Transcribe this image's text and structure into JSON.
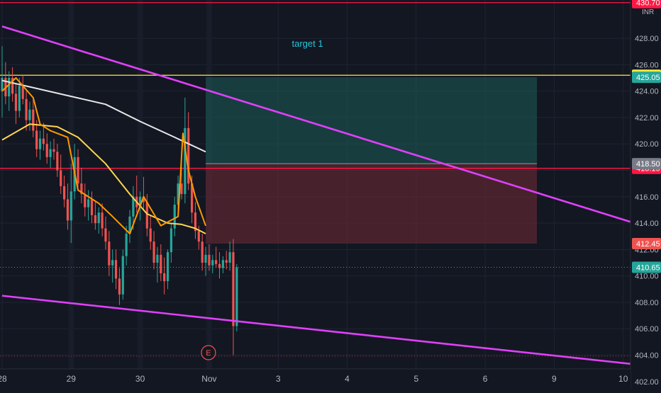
{
  "chart_data": {
    "type": "candlestick",
    "currency": "INR",
    "ylim": [
      401.4,
      430.9
    ],
    "y_ticks": [
      "402.00",
      "404.00",
      "406.00",
      "408.00",
      "410.00",
      "412.00",
      "414.00",
      "416.00",
      "418.00",
      "420.00",
      "422.00",
      "424.00",
      "426.00",
      "428.00"
    ],
    "x_ticks": [
      {
        "label": "28",
        "t": 0
      },
      {
        "label": "29",
        "t": 1
      },
      {
        "label": "30",
        "t": 2
      },
      {
        "label": "Nov",
        "t": 3
      },
      {
        "label": "3",
        "t": 4
      },
      {
        "label": "4",
        "t": 5
      },
      {
        "label": "5",
        "t": 6
      },
      {
        "label": "6",
        "t": 7
      },
      {
        "label": "9",
        "t": 8
      },
      {
        "label": "10",
        "t": 9
      }
    ],
    "horizontal_lines": [
      {
        "price": 430.7,
        "label": "430.70",
        "color": "#ff1744"
      },
      {
        "price": 425.2,
        "label": "425.20",
        "color": "#ffeb3b"
      },
      {
        "price": 418.15,
        "label": "418.15",
        "color": "#ff1744"
      }
    ],
    "price_badges": [
      {
        "price": 425.05,
        "label": "425.05",
        "color": "#26a69a"
      },
      {
        "price": 418.5,
        "label": "418.50",
        "color": "#787b86"
      },
      {
        "price": 412.45,
        "label": "412.45",
        "color": "#ef5350"
      },
      {
        "price": 410.65,
        "label": "410.65",
        "color": "#26a69a"
      }
    ],
    "last_price": 410.65,
    "position": {
      "entry": 418.5,
      "target": 425.05,
      "stop": 412.45,
      "t_start": 2.95,
      "t_end": 7.75,
      "target_label": "target 1"
    },
    "trendlines": [
      {
        "name": "upper",
        "color": "#e040fb",
        "t1": 0,
        "p1": 428.9,
        "t2": 9.35,
        "p2": 413.7
      },
      {
        "name": "lower",
        "color": "#e040fb",
        "t1": 0,
        "p1": 408.5,
        "t2": 9.35,
        "p2": 403.2
      }
    ],
    "moving_averages": [
      {
        "color": "#e8e8e8",
        "t": [
          0,
          0.5,
          1.0,
          1.5,
          2.0,
          2.5,
          2.95
        ],
        "p": [
          424.8,
          424.2,
          423.6,
          423.0,
          421.7,
          420.5,
          419.4
        ]
      },
      {
        "color": "#ffd54f",
        "t": [
          0,
          0.4,
          0.8,
          1.1,
          1.5,
          1.85,
          2.1,
          2.4,
          2.6,
          2.8,
          2.95
        ],
        "p": [
          420.3,
          421.5,
          421.3,
          420.5,
          418.5,
          416.2,
          414.7,
          414.0,
          413.9,
          413.6,
          413.2
        ]
      },
      {
        "color": "#ff9800",
        "t": [
          0,
          0.2,
          0.45,
          0.55,
          0.7,
          0.95,
          1.1,
          1.4,
          1.6,
          1.85,
          2.05,
          2.3,
          2.55,
          2.62,
          2.7,
          2.8,
          2.95
        ],
        "p": [
          424.0,
          425.0,
          423.5,
          421.5,
          421.0,
          420.5,
          416.5,
          415.5,
          414.5,
          413.2,
          416.0,
          413.8,
          414.5,
          420.8,
          418.0,
          416.0,
          413.8
        ]
      }
    ],
    "candles": [
      [
        0,
        424.0,
        427.4,
        422.0,
        425.0
      ],
      [
        0.05,
        425.0,
        426.2,
        423.0,
        423.6
      ],
      [
        0.1,
        423.6,
        425.5,
        422.5,
        425.0
      ],
      [
        0.15,
        425.0,
        425.8,
        423.2,
        423.8
      ],
      [
        0.2,
        423.8,
        424.6,
        421.5,
        422.5
      ],
      [
        0.25,
        422.5,
        425.0,
        422.0,
        424.4
      ],
      [
        0.3,
        424.4,
        425.2,
        423.0,
        423.4
      ],
      [
        0.35,
        423.4,
        424.0,
        421.0,
        421.8
      ],
      [
        0.4,
        421.8,
        423.2,
        421.0,
        422.6
      ],
      [
        0.45,
        422.6,
        423.5,
        420.5,
        421.0
      ],
      [
        0.5,
        421.0,
        421.8,
        419.0,
        419.6
      ],
      [
        0.55,
        419.6,
        421.0,
        418.8,
        420.4
      ],
      [
        0.6,
        420.4,
        421.6,
        419.5,
        420.0
      ],
      [
        0.65,
        420.0,
        420.8,
        418.5,
        419.0
      ],
      [
        0.7,
        419.0,
        420.2,
        418.2,
        419.6
      ],
      [
        0.75,
        419.6,
        420.4,
        418.8,
        419.4
      ],
      [
        0.8,
        419.4,
        420.0,
        417.5,
        418.0
      ],
      [
        0.85,
        418.0,
        419.2,
        416.2,
        416.8
      ],
      [
        0.9,
        416.8,
        417.6,
        415.2,
        415.8
      ],
      [
        0.95,
        415.8,
        417.0,
        413.5,
        414.2
      ],
      [
        1.0,
        414.2,
        418.5,
        412.5,
        416.4
      ],
      [
        1.05,
        416.4,
        420.0,
        415.8,
        419.0
      ],
      [
        1.1,
        419.0,
        419.6,
        416.5,
        417.0
      ],
      [
        1.15,
        417.0,
        418.2,
        415.5,
        416.2
      ],
      [
        1.2,
        416.2,
        417.0,
        414.5,
        415.2
      ],
      [
        1.25,
        415.2,
        416.5,
        414.2,
        415.8
      ],
      [
        1.3,
        415.8,
        416.4,
        414.0,
        414.6
      ],
      [
        1.35,
        414.6,
        415.6,
        413.5,
        414.0
      ],
      [
        1.4,
        414.0,
        415.2,
        413.2,
        414.8
      ],
      [
        1.45,
        414.8,
        415.5,
        413.0,
        413.6
      ],
      [
        1.5,
        413.6,
        414.5,
        412.0,
        412.6
      ],
      [
        1.55,
        412.6,
        413.4,
        410.0,
        410.8
      ],
      [
        1.6,
        410.8,
        412.0,
        409.5,
        411.2
      ],
      [
        1.65,
        411.2,
        412.0,
        409.0,
        409.8
      ],
      [
        1.7,
        409.8,
        410.6,
        407.8,
        408.6
      ],
      [
        1.75,
        408.6,
        412.0,
        408.2,
        411.5
      ],
      [
        1.8,
        411.5,
        413.8,
        410.8,
        413.2
      ],
      [
        1.85,
        413.2,
        415.0,
        412.5,
        414.5
      ],
      [
        1.9,
        414.5,
        416.8,
        413.5,
        416.0
      ],
      [
        1.95,
        416.0,
        417.6,
        414.8,
        415.2
      ],
      [
        2.0,
        415.2,
        416.4,
        414.2,
        416.0
      ],
      [
        2.05,
        416.0,
        417.5,
        415.0,
        415.6
      ],
      [
        2.1,
        415.6,
        416.2,
        413.0,
        413.6
      ],
      [
        2.15,
        413.6,
        414.6,
        412.0,
        412.6
      ],
      [
        2.2,
        412.6,
        413.4,
        410.5,
        411.0
      ],
      [
        2.25,
        411.0,
        412.2,
        409.5,
        411.6
      ],
      [
        2.3,
        411.6,
        412.4,
        409.6,
        410.2
      ],
      [
        2.35,
        410.2,
        411.4,
        408.6,
        409.6
      ],
      [
        2.4,
        409.6,
        412.0,
        409.0,
        411.8
      ],
      [
        2.45,
        411.8,
        414.0,
        411.0,
        413.6
      ],
      [
        2.5,
        413.6,
        416.0,
        413.0,
        415.4
      ],
      [
        2.55,
        415.4,
        417.6,
        414.5,
        417.0
      ],
      [
        2.6,
        417.0,
        418.5,
        415.8,
        416.2
      ],
      [
        2.65,
        416.2,
        423.5,
        415.5,
        421.2
      ],
      [
        2.7,
        421.2,
        422.4,
        416.5,
        417.0
      ],
      [
        2.75,
        417.0,
        417.6,
        414.0,
        414.8
      ],
      [
        2.8,
        414.8,
        415.6,
        412.8,
        413.4
      ],
      [
        2.85,
        413.4,
        413.8,
        412.0,
        412.6
      ],
      [
        2.9,
        412.6,
        413.2,
        410.4,
        411.0
      ],
      [
        2.95,
        411.0,
        412.2,
        410.0,
        411.6
      ],
      [
        3.0,
        411.6,
        412.4,
        410.4,
        410.8
      ],
      [
        3.05,
        410.8,
        411.6,
        410.2,
        411.2
      ],
      [
        3.1,
        411.2,
        412.2,
        410.6,
        410.9
      ],
      [
        3.15,
        410.9,
        411.8,
        409.8,
        410.6
      ],
      [
        3.2,
        410.6,
        411.5,
        410.2,
        411.2
      ],
      [
        3.25,
        411.2,
        411.9,
        410.5,
        411.0
      ],
      [
        3.3,
        411.0,
        412.6,
        410.4,
        411.8
      ],
      [
        3.35,
        411.8,
        412.8,
        404.0,
        406.2
      ],
      [
        3.4,
        406.2,
        410.9,
        405.8,
        410.65
      ]
    ]
  }
}
